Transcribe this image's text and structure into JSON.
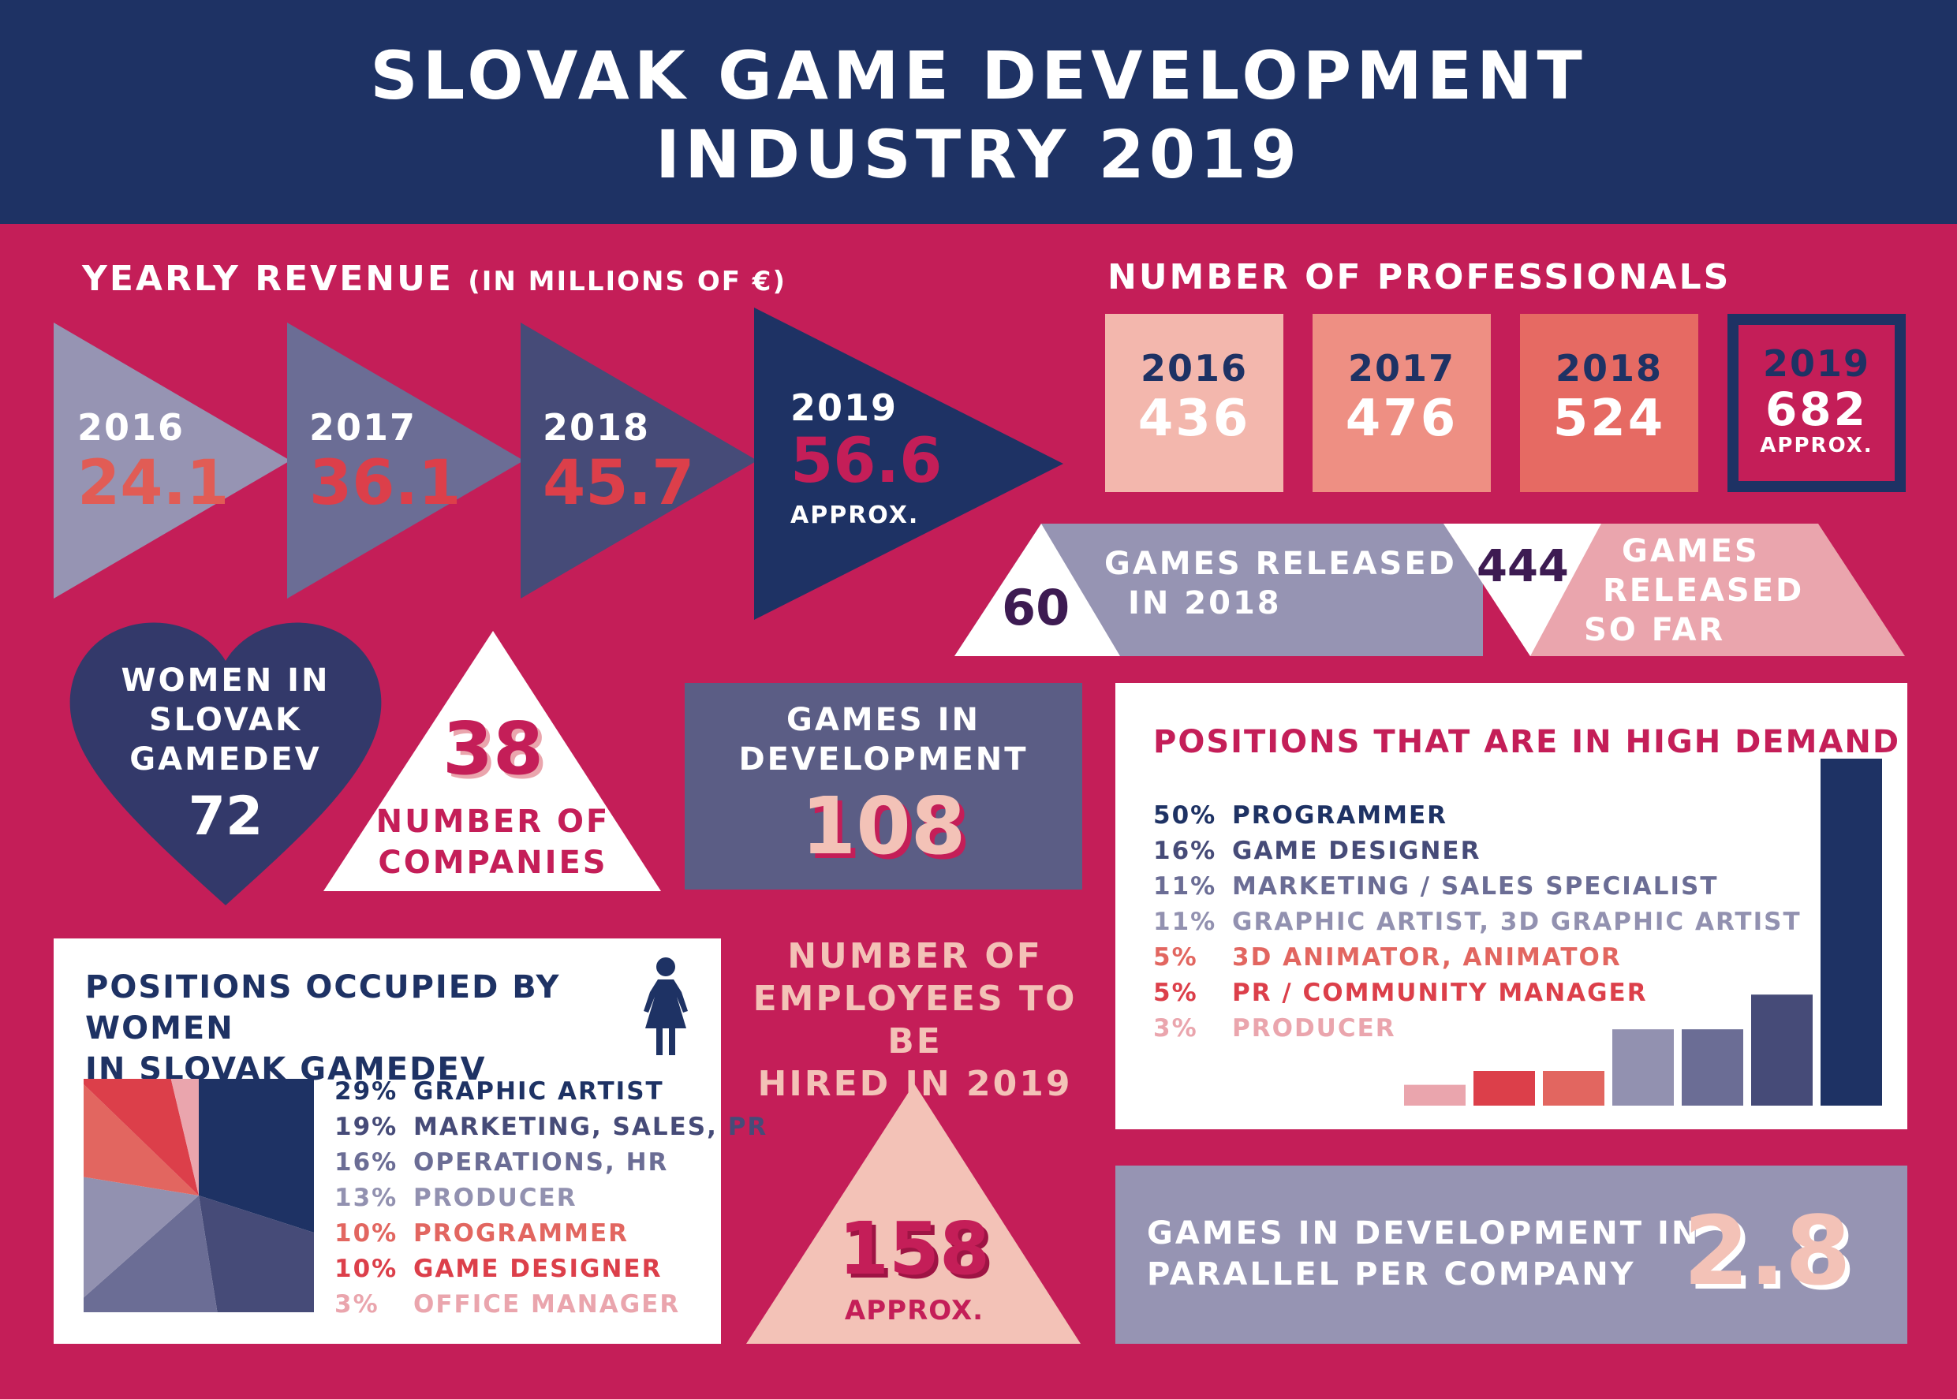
{
  "header": {
    "title_line1": "SLOVAK GAME DEVELOPMENT",
    "title_line2": "INDUSTRY 2019"
  },
  "revenue": {
    "title": "YEARLY REVENUE",
    "subtitle": "(IN MILLIONS OF €)",
    "items": [
      {
        "year": "2016",
        "value": "24.1"
      },
      {
        "year": "2017",
        "value": "36.1"
      },
      {
        "year": "2018",
        "value": "45.7"
      },
      {
        "year": "2019",
        "value": "56.6",
        "note": "APPROX."
      }
    ]
  },
  "professionals": {
    "title": "NUMBER OF PROFESSIONALS",
    "items": [
      {
        "year": "2016",
        "value": "436"
      },
      {
        "year": "2017",
        "value": "476"
      },
      {
        "year": "2018",
        "value": "524"
      },
      {
        "year": "2019",
        "value": "682",
        "note": "APPROX."
      }
    ]
  },
  "games_released_2018": {
    "value": "60",
    "label_line1": "GAMES RELEASED",
    "label_line2": "IN 2018"
  },
  "games_released_total": {
    "value": "444",
    "label_line1": "GAMES",
    "label_line2": "RELEASED",
    "label_line3": "SO FAR"
  },
  "women": {
    "label_line1": "WOMEN IN",
    "label_line2": "SLOVAK",
    "label_line3": "GAMEDEV",
    "value": "72"
  },
  "companies": {
    "value": "38",
    "label_line1": "NUMBER OF",
    "label_line2": "COMPANIES"
  },
  "games_in_dev": {
    "label_line1": "GAMES IN",
    "label_line2": "DEVELOPMENT",
    "value": "108"
  },
  "high_demand": {
    "title": "POSITIONS THAT ARE IN HIGH DEMAND",
    "items": [
      {
        "pct": "50%",
        "label": "PROGRAMMER",
        "color": "#1e3264",
        "value": 50
      },
      {
        "pct": "16%",
        "label": "GAME DESIGNER",
        "color": "#464b78",
        "value": 16
      },
      {
        "pct": "11%",
        "label": "MARKETING / SALES SPECIALIST",
        "color": "#6b6d95",
        "value": 11
      },
      {
        "pct": "11%",
        "label": "GRAPHIC ARTIST, 3D GRAPHIC ARTIST",
        "color": "#9291b0",
        "value": 11
      },
      {
        "pct": "5%",
        "label": "3D ANIMATOR, ANIMATOR",
        "color": "#e26660",
        "value": 5
      },
      {
        "pct": "5%",
        "label": "PR / COMMUNITY MANAGER",
        "color": "#dc3f4a",
        "value": 5
      },
      {
        "pct": "3%",
        "label": "PRODUCER",
        "color": "#eaa5ad",
        "value": 3
      }
    ]
  },
  "women_positions": {
    "title_line1": "POSITIONS OCCUPIED BY WOMEN",
    "title_line2": "IN SLOVAK GAMEDEV",
    "items": [
      {
        "pct": "29%",
        "label": "GRAPHIC ARTIST",
        "color": "#1e3264",
        "value": 29
      },
      {
        "pct": "19%",
        "label": "MARKETING, SALES, PR",
        "color": "#464b78",
        "value": 19
      },
      {
        "pct": "16%",
        "label": "OPERATIONS, HR",
        "color": "#6b6d95",
        "value": 16
      },
      {
        "pct": "13%",
        "label": "PRODUCER",
        "color": "#9291b0",
        "value": 13
      },
      {
        "pct": "10%",
        "label": "PROGRAMMER",
        "color": "#e26660",
        "value": 10
      },
      {
        "pct": "10%",
        "label": "GAME DESIGNER",
        "color": "#dc3f4a",
        "value": 10
      },
      {
        "pct": "3%",
        "label": "OFFICE MANAGER",
        "color": "#eaa5ad",
        "value": 3
      }
    ]
  },
  "to_hire": {
    "label_line1": "NUMBER OF",
    "label_line2": "EMPLOYEES TO BE",
    "label_line3": "HIRED IN 2019",
    "value": "158",
    "note": "APPROX."
  },
  "parallel": {
    "label_line1": "GAMES IN DEVELOPMENT IN",
    "label_line2": "PARALLEL PER COMPANY",
    "value": "2.8"
  }
}
